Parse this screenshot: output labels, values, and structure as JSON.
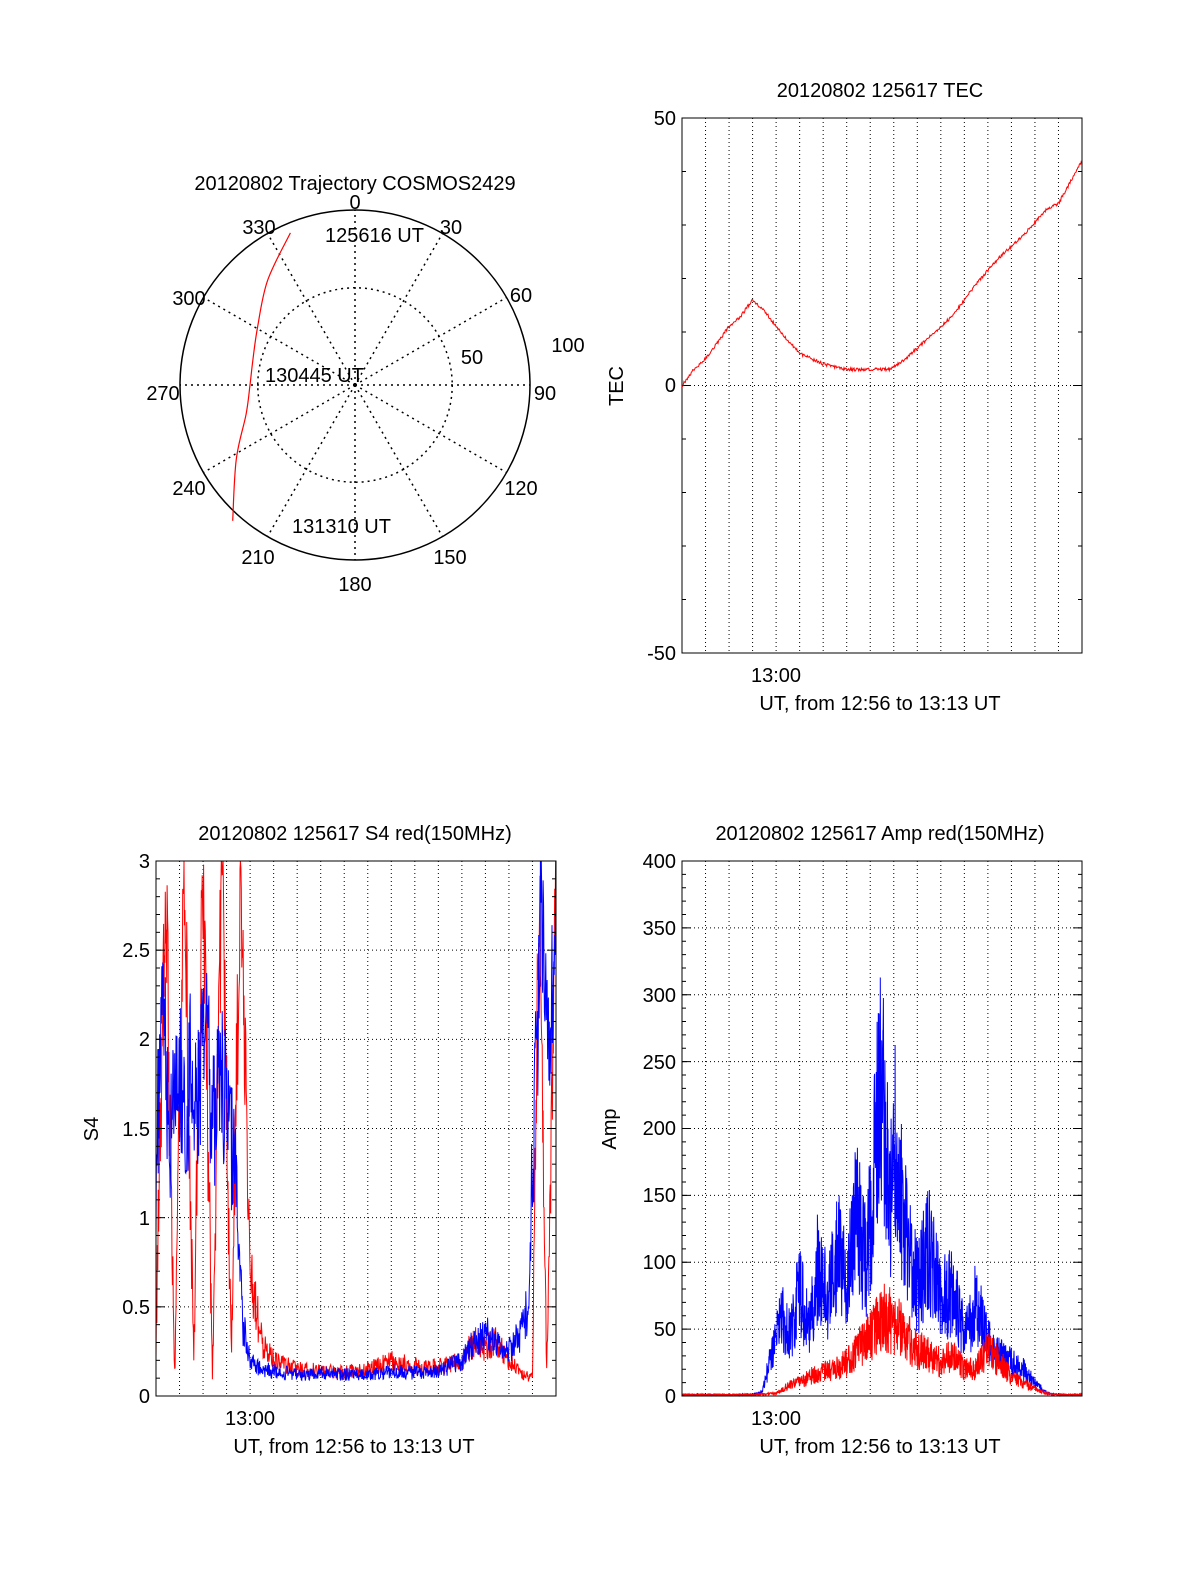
{
  "colors": {
    "red": "#ff0000",
    "blue": "#0000ff",
    "axis": "#000000",
    "grid": "#000000"
  },
  "chart_data": [
    {
      "id": "trajectory",
      "type": "polar",
      "title": "20120802 Trajectory COSMOS2429",
      "azimuth_labels": [
        "0",
        "30",
        "60",
        "90",
        "120",
        "150",
        "180",
        "210",
        "240",
        "270",
        "300",
        "330"
      ],
      "radial_labels": [
        "50",
        "100"
      ],
      "grid": true,
      "track": {
        "color": "red",
        "start_label": "125616 UT",
        "mid_label": "130445 UT",
        "end_label": "131310 UT",
        "points": [
          {
            "az": 337,
            "zd": 85
          },
          {
            "az": 320,
            "zd": 70
          },
          {
            "az": 300,
            "zd": 58
          },
          {
            "az": 283,
            "zd": 54
          },
          {
            "az": 270,
            "zd": 54
          },
          {
            "az": 255,
            "zd": 58
          },
          {
            "az": 238,
            "zd": 72
          },
          {
            "az": 222,
            "zd": 94
          }
        ]
      }
    },
    {
      "id": "tec",
      "type": "line",
      "title": "20120802 125617 TEC",
      "ylabel": "TEC",
      "xlabel": "UT, from 12:56 to 13:13 UT",
      "xticks": [
        "13:00"
      ],
      "yticks": [
        "50",
        "0",
        "-50"
      ],
      "ylim": [
        -50,
        50
      ],
      "xlim_minutes": [
        0,
        17
      ],
      "grid": true,
      "series": [
        {
          "color": "red",
          "x": [
            0.0,
            0.5,
            1.0,
            1.5,
            2.0,
            2.5,
            3.0,
            3.5,
            4.0,
            5.0,
            6.0,
            7.0,
            8.0,
            8.8,
            9.5,
            10.5,
            11.5,
            12.5,
            13.5,
            14.5,
            15.5,
            16.0,
            16.5,
            17.0
          ],
          "y": [
            0,
            3,
            5,
            8,
            11,
            13,
            16,
            14,
            11,
            6,
            4,
            3,
            3,
            3,
            5,
            9,
            13,
            19,
            24,
            28,
            33,
            34,
            38,
            42
          ]
        }
      ]
    },
    {
      "id": "s4",
      "type": "line",
      "title": "20120802 125617 S4 red(150MHz)",
      "ylabel": "S4",
      "xlabel": "UT, from 12:56 to 13:13 UT",
      "xticks": [
        "13:00"
      ],
      "yticks": [
        "0",
        "0.5",
        "1",
        "1.5",
        "2",
        "2.5",
        "3"
      ],
      "ylim": [
        0,
        3
      ],
      "xlim_minutes": [
        0,
        17
      ],
      "grid": true,
      "series": [
        {
          "color": "red",
          "x": [
            0.0,
            0.4,
            0.8,
            1.2,
            1.6,
            2.0,
            2.4,
            2.8,
            3.2,
            3.6,
            4.0,
            4.5,
            5.0,
            6.0,
            7.0,
            8.0,
            9.0,
            10.0,
            11.0,
            12.0,
            12.5,
            13.0,
            13.5,
            14.0,
            14.5,
            15.0,
            15.5,
            16.0,
            16.3,
            16.6,
            17.0
          ],
          "y": [
            0.3,
            3.0,
            0.1,
            3.0,
            0.2,
            3.0,
            0.1,
            3.0,
            0.2,
            3.0,
            0.7,
            0.3,
            0.2,
            0.15,
            0.14,
            0.13,
            0.15,
            0.2,
            0.17,
            0.16,
            0.18,
            0.2,
            0.3,
            0.28,
            0.3,
            0.2,
            0.12,
            0.1,
            3.0,
            0.1,
            3.0
          ]
        },
        {
          "color": "blue",
          "x": [
            0.0,
            0.3,
            0.6,
            0.9,
            1.2,
            1.5,
            1.8,
            2.1,
            2.4,
            2.7,
            3.0,
            3.3,
            3.5,
            3.7,
            4.0,
            4.5,
            5.0,
            6.0,
            7.0,
            8.0,
            9.0,
            10.0,
            11.0,
            12.0,
            13.0,
            13.5,
            14.0,
            14.5,
            15.0,
            15.5,
            15.8,
            16.1,
            16.4,
            16.7,
            17.0
          ],
          "y": [
            1.3,
            2.2,
            1.4,
            2.0,
            1.5,
            1.9,
            1.6,
            2.1,
            1.5,
            1.9,
            1.6,
            1.4,
            1.0,
            0.4,
            0.2,
            0.15,
            0.14,
            0.12,
            0.13,
            0.12,
            0.12,
            0.14,
            0.13,
            0.14,
            0.2,
            0.3,
            0.35,
            0.3,
            0.25,
            0.35,
            0.5,
            1.6,
            2.8,
            1.8,
            3.0
          ]
        }
      ]
    },
    {
      "id": "amp",
      "type": "line",
      "title": "20120802 125617 Amp red(150MHz)",
      "ylabel": "Amp",
      "xlabel": "UT, from 12:56 to 13:13 UT",
      "xticks": [
        "13:00"
      ],
      "yticks": [
        "0",
        "50",
        "100",
        "150",
        "200",
        "250",
        "300",
        "350",
        "400"
      ],
      "ylim": [
        0,
        400
      ],
      "xlim_minutes": [
        0,
        17
      ],
      "grid": true,
      "series": [
        {
          "color": "blue",
          "x": [
            0.0,
            1.0,
            2.0,
            3.0,
            3.4,
            3.8,
            4.2,
            4.6,
            5.0,
            5.4,
            5.8,
            6.2,
            6.6,
            7.0,
            7.4,
            7.8,
            8.2,
            8.5,
            8.8,
            9.1,
            9.4,
            9.7,
            10.0,
            10.5,
            11.0,
            11.5,
            12.0,
            12.5,
            13.0,
            13.5,
            14.0,
            14.5,
            15.0,
            15.5,
            16.0,
            17.0
          ],
          "y": [
            1,
            1,
            1,
            1,
            3,
            30,
            60,
            45,
            80,
            50,
            100,
            70,
            110,
            80,
            150,
            100,
            170,
            260,
            140,
            200,
            130,
            100,
            80,
            110,
            70,
            80,
            45,
            70,
            40,
            30,
            25,
            20,
            10,
            2,
            1,
            1
          ]
        },
        {
          "color": "red",
          "x": [
            0.0,
            1.0,
            2.0,
            3.0,
            4.0,
            4.5,
            5.0,
            5.5,
            6.0,
            6.5,
            7.0,
            7.5,
            8.0,
            8.5,
            9.0,
            9.5,
            10.0,
            10.5,
            11.0,
            11.5,
            12.0,
            12.5,
            13.0,
            13.5,
            14.0,
            14.5,
            15.0,
            15.5,
            16.0,
            17.0
          ],
          "y": [
            1,
            1,
            1,
            1,
            2,
            8,
            10,
            15,
            18,
            20,
            25,
            35,
            45,
            60,
            55,
            45,
            35,
            30,
            25,
            30,
            20,
            20,
            35,
            25,
            15,
            10,
            5,
            2,
            1,
            1
          ]
        }
      ]
    }
  ]
}
